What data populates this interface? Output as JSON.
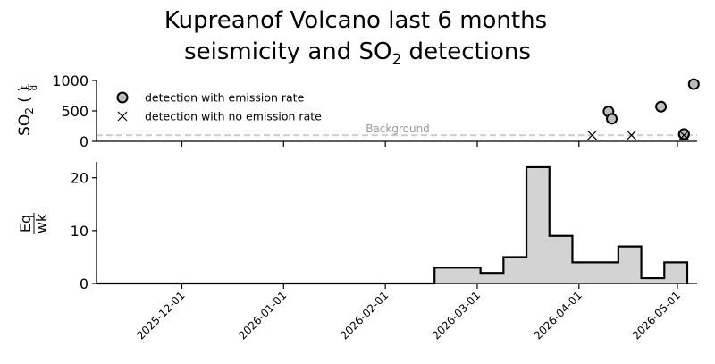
{
  "title_line1": "Kupreanof Volcano last 6 months",
  "title_line2_prefix": "seismicity and SO",
  "title_line2_sub": "2",
  "title_line2_suffix": " detections",
  "colors": {
    "marker_fill": "#bdbdbd",
    "bar_fill": "#d3d3d3",
    "background_line": "#cccccc",
    "axes": "#000000"
  },
  "chart_data": [
    {
      "type": "scatter",
      "ylabel_main": "SO",
      "ylabel_sub": "2",
      "ylabel_unit_num": "t",
      "ylabel_unit_den": "d",
      "ylim": [
        0,
        1000
      ],
      "yticks": [
        0,
        500,
        1000
      ],
      "background": {
        "label": "Background",
        "value": 100
      },
      "legend": {
        "placement": "top-left",
        "entries": [
          {
            "marker": "circle",
            "label": "detection with emission rate"
          },
          {
            "marker": "x",
            "label": "detection with no emission rate"
          }
        ]
      },
      "series": [
        {
          "marker": "circle",
          "points": [
            {
              "x": "2026-04-10",
              "y": 490
            },
            {
              "x": "2026-04-11",
              "y": 370
            },
            {
              "x": "2026-04-26",
              "y": 570
            },
            {
              "x": "2026-05-03",
              "y": 115
            },
            {
              "x": "2026-05-03",
              "y": 120
            },
            {
              "x": "2026-05-06",
              "y": 940
            }
          ]
        },
        {
          "marker": "x",
          "points": [
            {
              "x": "2026-04-05",
              "y": 100
            },
            {
              "x": "2026-04-17",
              "y": 100
            },
            {
              "x": "2026-05-03",
              "y": 100
            }
          ]
        }
      ]
    },
    {
      "type": "bar",
      "ylabel_num": "Eq",
      "ylabel_den": "wk",
      "ylim": [
        0,
        23
      ],
      "yticks": [
        0,
        10,
        20
      ],
      "bins": [
        {
          "start": "2025-11-05",
          "end": "2026-02-16",
          "count": 0
        },
        {
          "start": "2026-02-16",
          "end": "2026-03-02",
          "count": 3
        },
        {
          "start": "2026-03-02",
          "end": "2026-03-09",
          "count": 2
        },
        {
          "start": "2026-03-09",
          "end": "2026-03-16",
          "count": 5
        },
        {
          "start": "2026-03-16",
          "end": "2026-03-23",
          "count": 22
        },
        {
          "start": "2026-03-23",
          "end": "2026-03-30",
          "count": 9
        },
        {
          "start": "2026-03-30",
          "end": "2026-04-13",
          "count": 4
        },
        {
          "start": "2026-04-13",
          "end": "2026-04-20",
          "count": 7
        },
        {
          "start": "2026-04-20",
          "end": "2026-04-27",
          "count": 1
        },
        {
          "start": "2026-04-27",
          "end": "2026-05-04",
          "count": 4
        }
      ],
      "xticks": [
        "2025-12-01",
        "2026-01-01",
        "2026-02-01",
        "2026-03-01",
        "2026-04-01",
        "2026-05-01"
      ],
      "xlim": [
        "2025-11-05",
        "2026-05-07"
      ]
    }
  ]
}
